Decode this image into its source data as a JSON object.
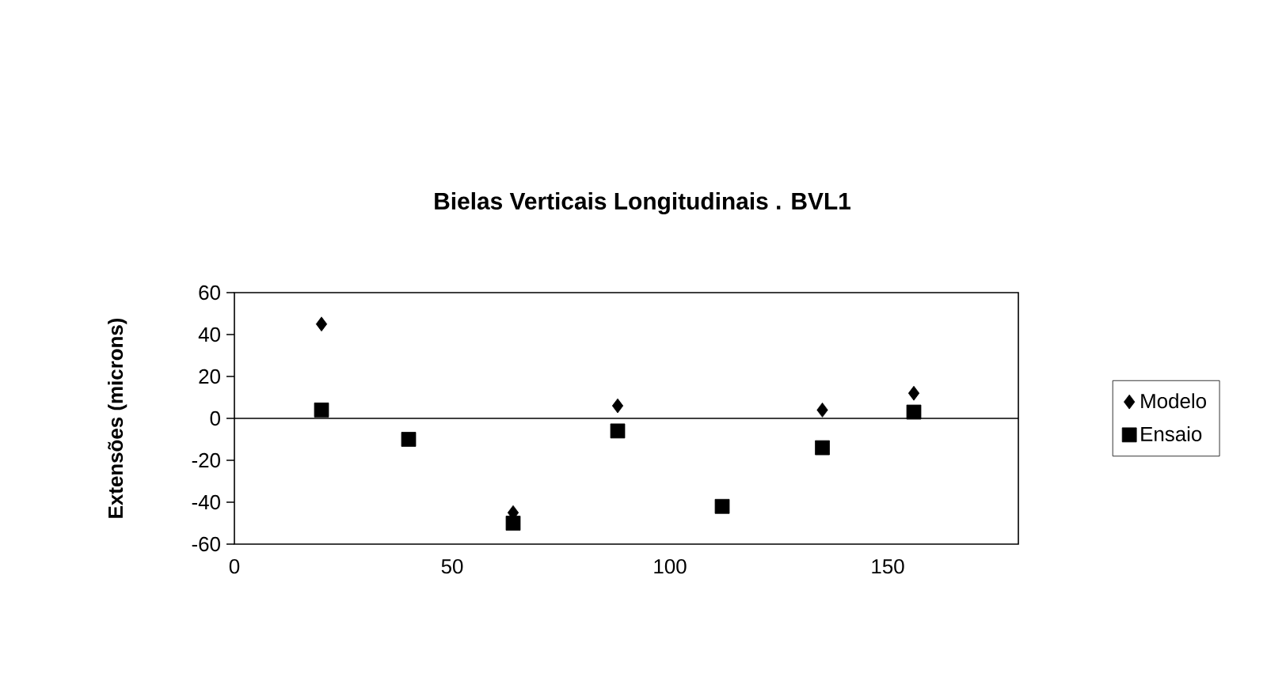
{
  "chart_data": {
    "type": "scatter",
    "title": "Bielas Verticais Longitudinais  .  BVL1",
    "ylabel": "Extensões (microns)",
    "x": [
      20,
      40,
      64,
      88,
      112,
      135,
      156
    ],
    "series": [
      {
        "name": "Modelo",
        "color": "#000000",
        "marker": "diamond",
        "values": [
          45,
          null,
          -45,
          6,
          null,
          4,
          12
        ]
      },
      {
        "name": "Ensaio",
        "color": "#000000",
        "marker": "square",
        "values": [
          4,
          -10,
          -50,
          -6,
          -42,
          -14,
          3
        ]
      }
    ],
    "xlim": [
      0,
      180
    ],
    "xticks": [
      0,
      50,
      100,
      150
    ],
    "ylim": [
      -60,
      60
    ],
    "yticks": [
      -60,
      -40,
      -20,
      0,
      20,
      40,
      60
    ],
    "ref_lines": [
      {
        "axis": "y",
        "value": 0
      }
    ],
    "grid": false,
    "legend": "right"
  }
}
